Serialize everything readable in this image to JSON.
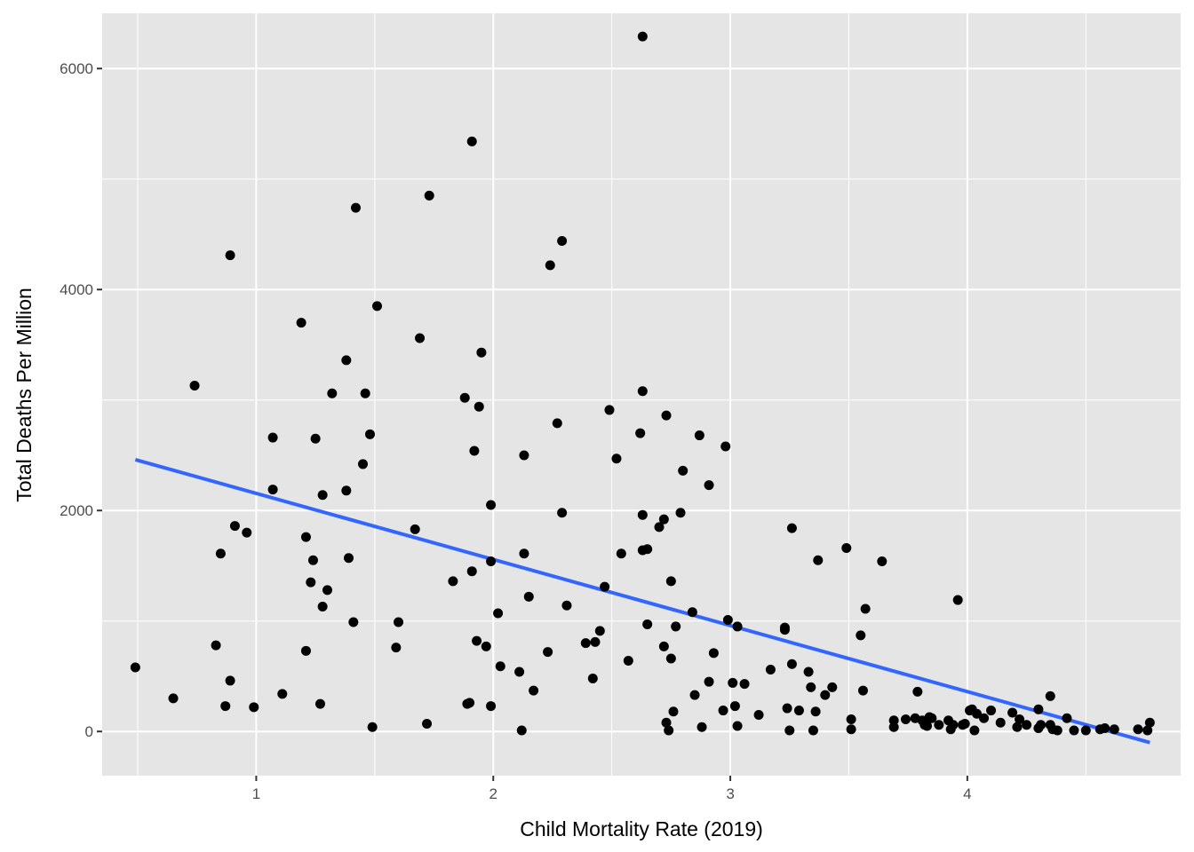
{
  "chart_data": {
    "type": "scatter",
    "title": "",
    "xlabel": "Child Mortality Rate (2019)",
    "ylabel": "Total Deaths Per Million",
    "xlim": [
      0.35,
      4.9
    ],
    "ylim": [
      -400,
      6500
    ],
    "x_ticks": [
      1,
      2,
      3,
      4
    ],
    "y_ticks": [
      0,
      2000,
      4000,
      6000
    ],
    "x_tick_labels": [
      "1",
      "2",
      "3",
      "4"
    ],
    "y_tick_labels": [
      "0",
      "2000",
      "4000",
      "6000"
    ],
    "grid": true,
    "legend": "none",
    "colors": {
      "panel": "#e5e5e5",
      "grid": "#ffffff",
      "point": "#000000",
      "fit_line": "#3366ff"
    },
    "fit_line": {
      "x": [
        0.49,
        4.77
      ],
      "y": [
        2460,
        -100
      ]
    },
    "points": [
      [
        0.49,
        580
      ],
      [
        0.65,
        300
      ],
      [
        0.74,
        3130
      ],
      [
        0.83,
        780
      ],
      [
        0.85,
        1610
      ],
      [
        0.87,
        230
      ],
      [
        0.89,
        460
      ],
      [
        0.89,
        4310
      ],
      [
        0.91,
        1860
      ],
      [
        0.96,
        1800
      ],
      [
        0.99,
        220
      ],
      [
        1.07,
        2660
      ],
      [
        1.07,
        2190
      ],
      [
        1.11,
        340
      ],
      [
        1.19,
        3700
      ],
      [
        1.21,
        730
      ],
      [
        1.21,
        1760
      ],
      [
        1.23,
        1350
      ],
      [
        1.24,
        1550
      ],
      [
        1.25,
        2650
      ],
      [
        1.27,
        250
      ],
      [
        1.28,
        2140
      ],
      [
        1.28,
        1130
      ],
      [
        1.3,
        1280
      ],
      [
        1.32,
        3060
      ],
      [
        1.38,
        3360
      ],
      [
        1.38,
        2180
      ],
      [
        1.39,
        1570
      ],
      [
        1.41,
        990
      ],
      [
        1.42,
        4740
      ],
      [
        1.45,
        2420
      ],
      [
        1.46,
        3060
      ],
      [
        1.48,
        2690
      ],
      [
        1.49,
        40
      ],
      [
        1.51,
        3850
      ],
      [
        1.59,
        760
      ],
      [
        1.6,
        990
      ],
      [
        1.67,
        1830
      ],
      [
        1.69,
        3560
      ],
      [
        1.72,
        70
      ],
      [
        1.73,
        4850
      ],
      [
        1.83,
        1360
      ],
      [
        1.88,
        3020
      ],
      [
        1.89,
        250
      ],
      [
        1.9,
        260
      ],
      [
        1.91,
        5340
      ],
      [
        1.91,
        1450
      ],
      [
        1.92,
        2540
      ],
      [
        1.93,
        820
      ],
      [
        1.94,
        2940
      ],
      [
        1.95,
        3430
      ],
      [
        1.97,
        770
      ],
      [
        1.99,
        2050
      ],
      [
        1.99,
        1540
      ],
      [
        1.99,
        230
      ],
      [
        2.02,
        1070
      ],
      [
        2.03,
        590
      ],
      [
        2.11,
        540
      ],
      [
        2.12,
        10
      ],
      [
        2.13,
        1610
      ],
      [
        2.13,
        2500
      ],
      [
        2.15,
        1220
      ],
      [
        2.17,
        370
      ],
      [
        2.23,
        720
      ],
      [
        2.24,
        4220
      ],
      [
        2.27,
        2790
      ],
      [
        2.29,
        4440
      ],
      [
        2.29,
        1980
      ],
      [
        2.31,
        1140
      ],
      [
        2.39,
        800
      ],
      [
        2.42,
        480
      ],
      [
        2.43,
        810
      ],
      [
        2.45,
        910
      ],
      [
        2.47,
        1310
      ],
      [
        2.49,
        2910
      ],
      [
        2.52,
        2470
      ],
      [
        2.54,
        1610
      ],
      [
        2.57,
        640
      ],
      [
        2.62,
        2700
      ],
      [
        2.63,
        1960
      ],
      [
        2.63,
        3080
      ],
      [
        2.63,
        1640
      ],
      [
        2.63,
        6290
      ],
      [
        2.65,
        1650
      ],
      [
        2.65,
        970
      ],
      [
        2.7,
        1850
      ],
      [
        2.72,
        770
      ],
      [
        2.72,
        1920
      ],
      [
        2.73,
        2860
      ],
      [
        2.73,
        80
      ],
      [
        2.74,
        10
      ],
      [
        2.75,
        660
      ],
      [
        2.75,
        1360
      ],
      [
        2.76,
        180
      ],
      [
        2.77,
        950
      ],
      [
        2.79,
        1980
      ],
      [
        2.8,
        2360
      ],
      [
        2.84,
        1080
      ],
      [
        2.85,
        330
      ],
      [
        2.87,
        2680
      ],
      [
        2.88,
        40
      ],
      [
        2.91,
        2230
      ],
      [
        2.91,
        450
      ],
      [
        2.93,
        710
      ],
      [
        2.97,
        190
      ],
      [
        2.98,
        2580
      ],
      [
        2.99,
        1010
      ],
      [
        3.01,
        440
      ],
      [
        3.02,
        230
      ],
      [
        3.03,
        50
      ],
      [
        3.03,
        950
      ],
      [
        3.06,
        430
      ],
      [
        3.12,
        150
      ],
      [
        3.17,
        560
      ],
      [
        3.23,
        940
      ],
      [
        3.23,
        920
      ],
      [
        3.24,
        210
      ],
      [
        3.25,
        10
      ],
      [
        3.26,
        610
      ],
      [
        3.26,
        1840
      ],
      [
        3.29,
        190
      ],
      [
        3.33,
        540
      ],
      [
        3.34,
        400
      ],
      [
        3.35,
        10
      ],
      [
        3.36,
        180
      ],
      [
        3.37,
        1550
      ],
      [
        3.4,
        330
      ],
      [
        3.43,
        400
      ],
      [
        3.49,
        1660
      ],
      [
        3.51,
        20
      ],
      [
        3.51,
        110
      ],
      [
        3.55,
        870
      ],
      [
        3.56,
        370
      ],
      [
        3.57,
        1110
      ],
      [
        3.64,
        1540
      ],
      [
        3.69,
        40
      ],
      [
        3.69,
        100
      ],
      [
        3.74,
        110
      ],
      [
        3.78,
        120
      ],
      [
        3.79,
        360
      ],
      [
        3.81,
        100
      ],
      [
        3.82,
        60
      ],
      [
        3.83,
        50
      ],
      [
        3.84,
        130
      ],
      [
        3.85,
        120
      ],
      [
        3.88,
        60
      ],
      [
        3.92,
        100
      ],
      [
        3.93,
        20
      ],
      [
        3.94,
        60
      ],
      [
        3.96,
        1190
      ],
      [
        3.98,
        60
      ],
      [
        3.99,
        70
      ],
      [
        4.01,
        190
      ],
      [
        4.02,
        200
      ],
      [
        4.03,
        10
      ],
      [
        4.04,
        160
      ],
      [
        4.07,
        120
      ],
      [
        4.1,
        190
      ],
      [
        4.14,
        80
      ],
      [
        4.19,
        170
      ],
      [
        4.21,
        40
      ],
      [
        4.22,
        110
      ],
      [
        4.25,
        60
      ],
      [
        4.3,
        200
      ],
      [
        4.3,
        30
      ],
      [
        4.31,
        60
      ],
      [
        4.35,
        320
      ],
      [
        4.35,
        60
      ],
      [
        4.36,
        20
      ],
      [
        4.38,
        10
      ],
      [
        4.42,
        120
      ],
      [
        4.45,
        10
      ],
      [
        4.5,
        10
      ],
      [
        4.56,
        20
      ],
      [
        4.58,
        30
      ],
      [
        4.62,
        20
      ],
      [
        4.72,
        20
      ],
      [
        4.76,
        10
      ],
      [
        4.77,
        80
      ]
    ]
  }
}
